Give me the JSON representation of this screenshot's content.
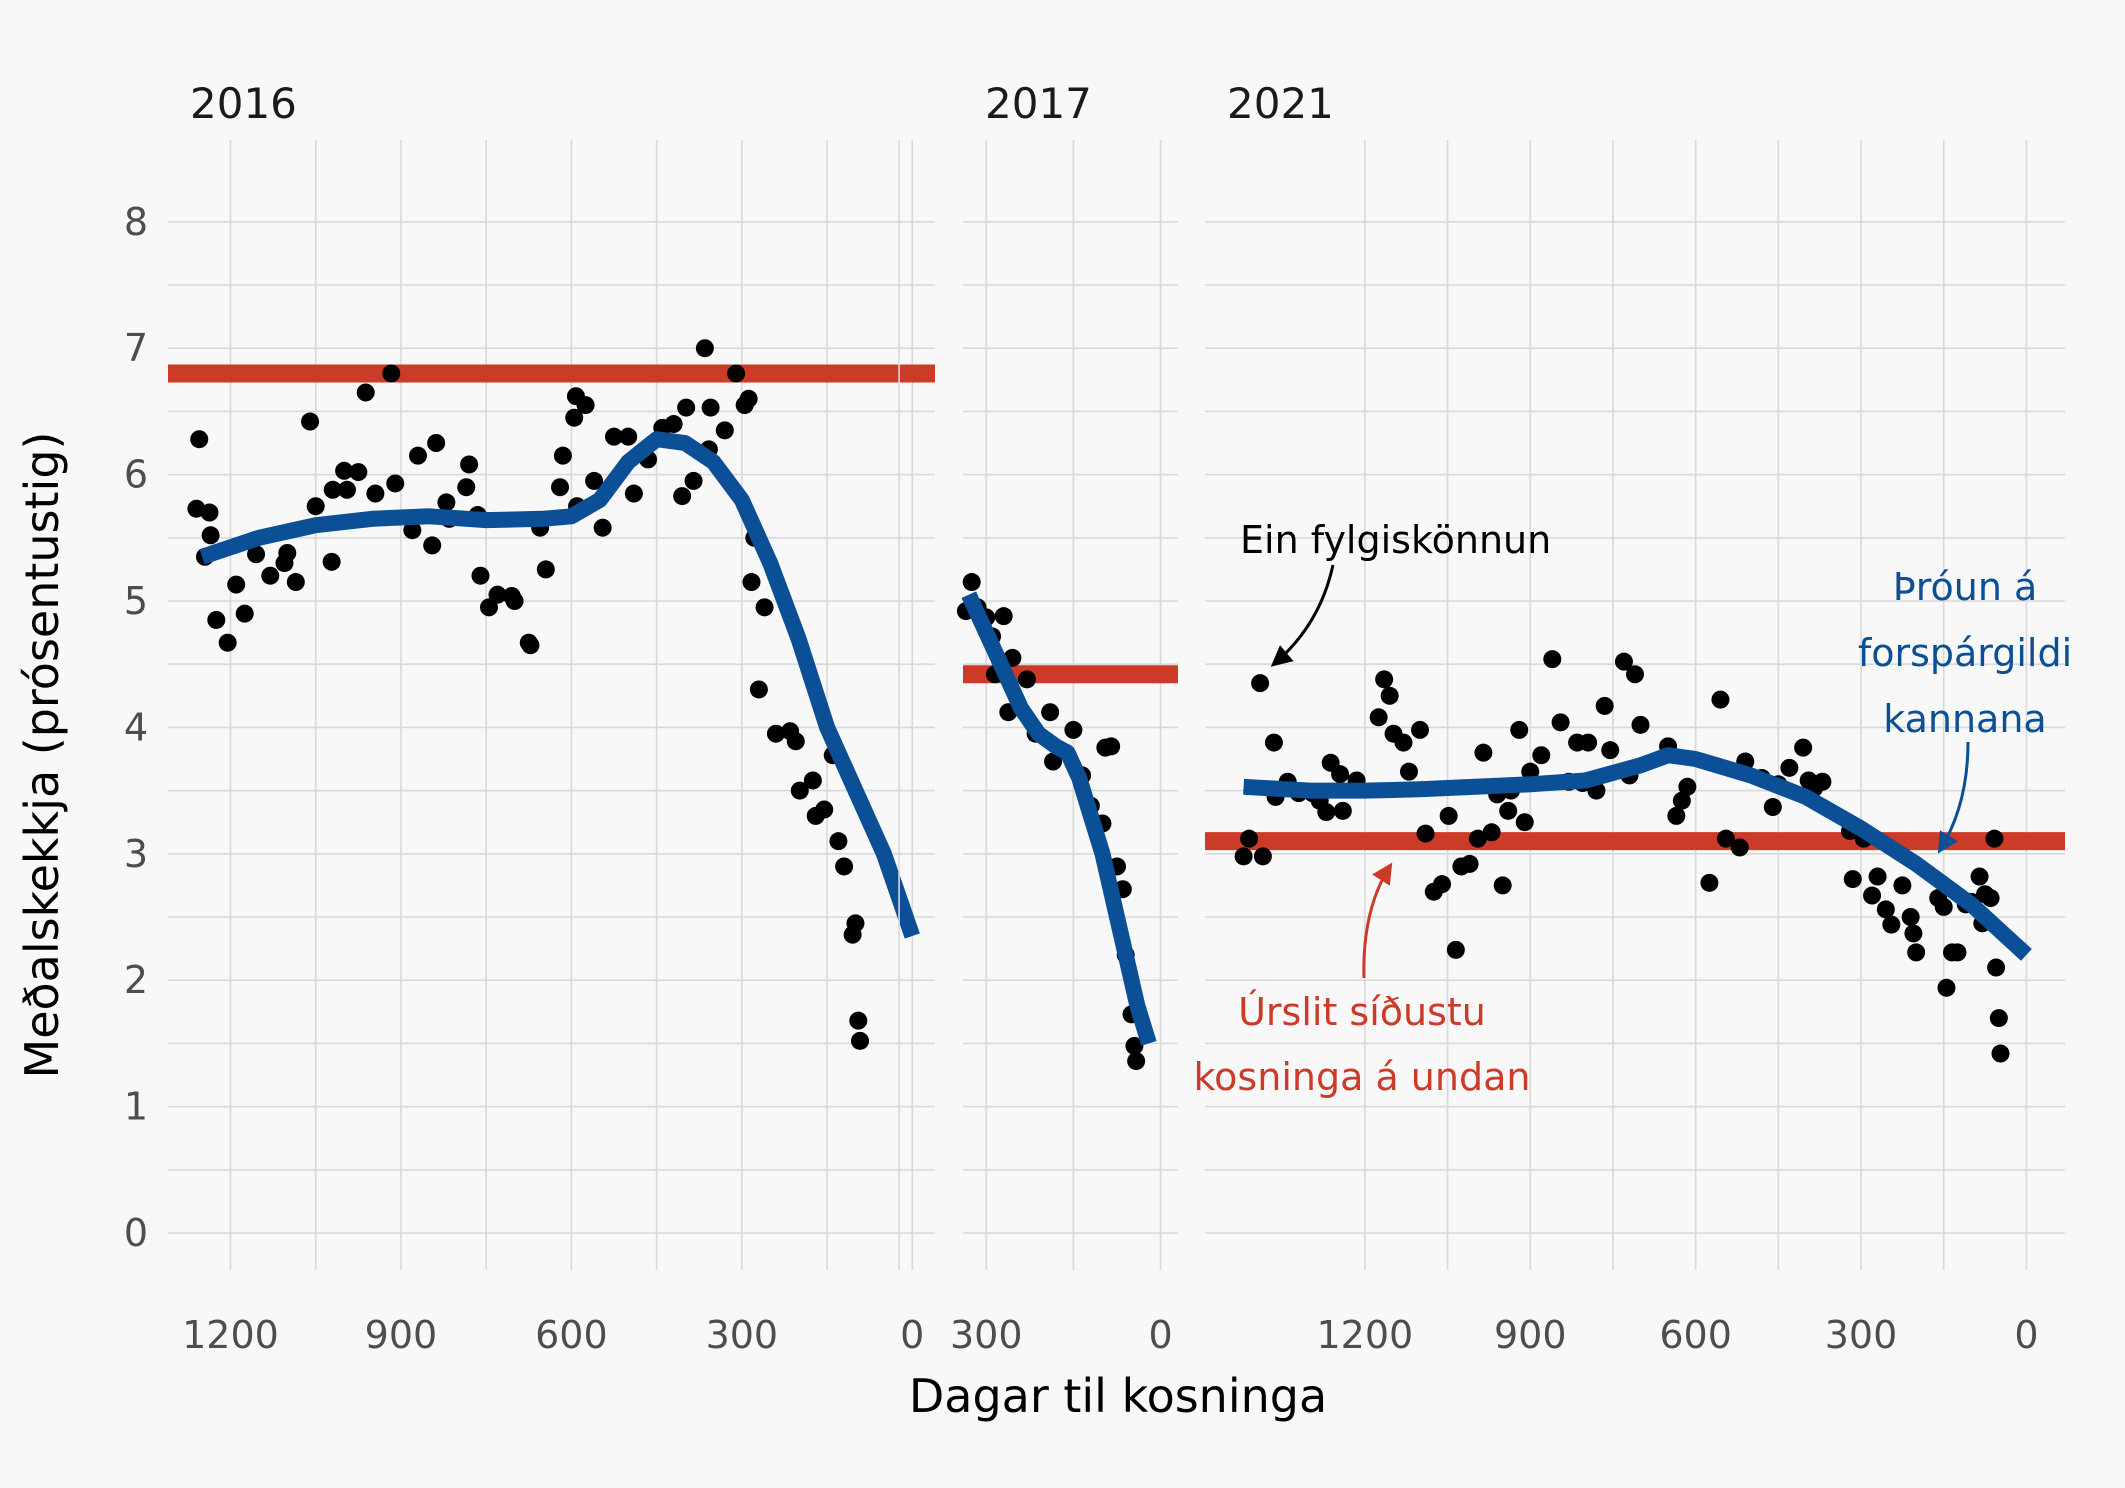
{
  "colors": {
    "background": "#f8f8f8",
    "points": "#000000",
    "trend": "#0b4f96",
    "result": "#cc3a28",
    "grid": "#d9d9d9"
  },
  "annotations": {
    "poll": "Ein fylgiskönnun",
    "trend": [
      "Þróun á",
      "forspárgildi",
      "kannana"
    ],
    "result": [
      "Úrslit síðustu",
      "kosninga á undan"
    ]
  },
  "chart_data": {
    "type": "scatter",
    "xlabel": "Dagar til kosninga",
    "ylabel": "Meðalskekkja (prósentustig)",
    "ylim": [
      0,
      8.5
    ],
    "yticks": [
      0,
      1,
      2,
      3,
      4,
      5,
      6,
      7,
      8
    ],
    "x_reversed": true,
    "panels": [
      {
        "label": "2016",
        "xlim": [
          1310,
          -40
        ],
        "xticks": [
          1200,
          900,
          600,
          300,
          0
        ],
        "previous_result": 6.8,
        "trend": [
          [
            1250,
            5.35
          ],
          [
            1150,
            5.5
          ],
          [
            1050,
            5.6
          ],
          [
            950,
            5.65
          ],
          [
            850,
            5.67
          ],
          [
            750,
            5.64
          ],
          [
            650,
            5.65
          ],
          [
            600,
            5.67
          ],
          [
            550,
            5.8
          ],
          [
            500,
            6.1
          ],
          [
            450,
            6.28
          ],
          [
            400,
            6.25
          ],
          [
            350,
            6.1
          ],
          [
            300,
            5.8
          ],
          [
            250,
            5.3
          ],
          [
            200,
            4.7
          ],
          [
            150,
            4.0
          ],
          [
            100,
            3.5
          ],
          [
            50,
            3.0
          ],
          [
            0,
            2.35
          ]
        ],
        "points": [
          [
            1260,
            5.73
          ],
          [
            1255,
            6.28
          ],
          [
            1245,
            5.35
          ],
          [
            1237,
            5.7
          ],
          [
            1235,
            5.52
          ],
          [
            1225,
            4.85
          ],
          [
            1205,
            4.67
          ],
          [
            1190,
            5.13
          ],
          [
            1175,
            4.9
          ],
          [
            1155,
            5.37
          ],
          [
            1130,
            5.2
          ],
          [
            1105,
            5.3
          ],
          [
            1100,
            5.38
          ],
          [
            1085,
            5.15
          ],
          [
            1060,
            6.42
          ],
          [
            1050,
            5.75
          ],
          [
            1022,
            5.31
          ],
          [
            1020,
            5.88
          ],
          [
            1000,
            6.03
          ],
          [
            995,
            5.88
          ],
          [
            975,
            6.02
          ],
          [
            962,
            6.65
          ],
          [
            945,
            5.85
          ],
          [
            917,
            6.8
          ],
          [
            910,
            5.93
          ],
          [
            880,
            5.56
          ],
          [
            870,
            6.15
          ],
          [
            845,
            5.44
          ],
          [
            838,
            6.25
          ],
          [
            820,
            5.78
          ],
          [
            815,
            5.65
          ],
          [
            785,
            5.9
          ],
          [
            780,
            6.08
          ],
          [
            765,
            5.68
          ],
          [
            760,
            5.2
          ],
          [
            745,
            4.95
          ],
          [
            730,
            5.05
          ],
          [
            705,
            5.04
          ],
          [
            700,
            5.0
          ],
          [
            675,
            4.67
          ],
          [
            672,
            4.65
          ],
          [
            655,
            5.58
          ],
          [
            645,
            5.25
          ],
          [
            620,
            5.9
          ],
          [
            615,
            6.15
          ],
          [
            595,
            6.45
          ],
          [
            592,
            6.62
          ],
          [
            590,
            5.75
          ],
          [
            575,
            6.55
          ],
          [
            560,
            5.95
          ],
          [
            545,
            5.58
          ],
          [
            525,
            6.3
          ],
          [
            500,
            6.3
          ],
          [
            490,
            5.85
          ],
          [
            465,
            6.12
          ],
          [
            440,
            6.37
          ],
          [
            420,
            6.4
          ],
          [
            405,
            5.83
          ],
          [
            398,
            6.53
          ],
          [
            385,
            5.95
          ],
          [
            365,
            7.0
          ],
          [
            358,
            6.2
          ],
          [
            355,
            6.53
          ],
          [
            330,
            6.35
          ],
          [
            310,
            6.8
          ],
          [
            295,
            6.55
          ],
          [
            288,
            6.6
          ],
          [
            283,
            5.15
          ],
          [
            278,
            5.5
          ],
          [
            270,
            4.3
          ],
          [
            260,
            4.95
          ],
          [
            240,
            3.95
          ],
          [
            215,
            3.97
          ],
          [
            205,
            3.89
          ],
          [
            198,
            3.5
          ],
          [
            175,
            3.58
          ],
          [
            170,
            3.3
          ],
          [
            155,
            3.35
          ],
          [
            140,
            3.78
          ],
          [
            130,
            3.1
          ],
          [
            120,
            2.9
          ],
          [
            105,
            2.36
          ],
          [
            100,
            2.45
          ],
          [
            95,
            1.68
          ],
          [
            92,
            1.52
          ]
        ]
      },
      {
        "label": "2017",
        "xlim": [
          340,
          -30
        ],
        "xticks": [
          300,
          0
        ],
        "previous_result": 4.42,
        "trend": [
          [
            330,
            5.05
          ],
          [
            300,
            4.75
          ],
          [
            270,
            4.45
          ],
          [
            240,
            4.15
          ],
          [
            210,
            3.95
          ],
          [
            180,
            3.85
          ],
          [
            160,
            3.8
          ],
          [
            140,
            3.6
          ],
          [
            120,
            3.3
          ],
          [
            100,
            3.0
          ],
          [
            80,
            2.6
          ],
          [
            60,
            2.2
          ],
          [
            40,
            1.8
          ],
          [
            20,
            1.5
          ]
        ],
        "points": [
          [
            335,
            4.92
          ],
          [
            325,
            5.15
          ],
          [
            315,
            4.95
          ],
          [
            300,
            4.87
          ],
          [
            290,
            4.72
          ],
          [
            285,
            4.42
          ],
          [
            270,
            4.88
          ],
          [
            262,
            4.12
          ],
          [
            255,
            4.55
          ],
          [
            230,
            4.38
          ],
          [
            215,
            3.95
          ],
          [
            190,
            4.12
          ],
          [
            185,
            3.73
          ],
          [
            150,
            3.98
          ],
          [
            135,
            3.62
          ],
          [
            120,
            3.38
          ],
          [
            100,
            3.24
          ],
          [
            95,
            3.84
          ],
          [
            85,
            3.85
          ],
          [
            75,
            2.9
          ],
          [
            65,
            2.72
          ],
          [
            60,
            2.2
          ],
          [
            50,
            1.73
          ],
          [
            45,
            1.48
          ],
          [
            42,
            1.36
          ]
        ]
      },
      {
        "label": "2021",
        "xlim": [
          1490,
          -70
        ],
        "xticks": [
          1200,
          900,
          600,
          300,
          0
        ],
        "previous_result": 3.1,
        "trend": [
          [
            1420,
            3.53
          ],
          [
            1300,
            3.5
          ],
          [
            1200,
            3.5
          ],
          [
            1100,
            3.51
          ],
          [
            1000,
            3.53
          ],
          [
            900,
            3.55
          ],
          [
            800,
            3.58
          ],
          [
            700,
            3.7
          ],
          [
            650,
            3.78
          ],
          [
            600,
            3.75
          ],
          [
            500,
            3.62
          ],
          [
            400,
            3.45
          ],
          [
            300,
            3.2
          ],
          [
            200,
            2.92
          ],
          [
            100,
            2.6
          ],
          [
            0,
            2.2
          ]
        ],
        "points": [
          [
            1420,
            2.98
          ],
          [
            1410,
            3.12
          ],
          [
            1390,
            4.35
          ],
          [
            1385,
            2.98
          ],
          [
            1365,
            3.88
          ],
          [
            1362,
            3.45
          ],
          [
            1340,
            3.57
          ],
          [
            1320,
            3.48
          ],
          [
            1295,
            3.48
          ],
          [
            1282,
            3.42
          ],
          [
            1270,
            3.33
          ],
          [
            1262,
            3.72
          ],
          [
            1245,
            3.63
          ],
          [
            1240,
            3.34
          ],
          [
            1215,
            3.58
          ],
          [
            1175,
            4.08
          ],
          [
            1165,
            4.38
          ],
          [
            1155,
            4.25
          ],
          [
            1148,
            3.95
          ],
          [
            1130,
            3.88
          ],
          [
            1120,
            3.65
          ],
          [
            1100,
            3.98
          ],
          [
            1090,
            3.16
          ],
          [
            1075,
            2.7
          ],
          [
            1060,
            2.76
          ],
          [
            1048,
            3.3
          ],
          [
            1035,
            2.24
          ],
          [
            1025,
            2.9
          ],
          [
            1010,
            2.92
          ],
          [
            995,
            3.12
          ],
          [
            985,
            3.8
          ],
          [
            970,
            3.17
          ],
          [
            960,
            3.47
          ],
          [
            950,
            2.75
          ],
          [
            940,
            3.34
          ],
          [
            935,
            3.5
          ],
          [
            920,
            3.98
          ],
          [
            910,
            3.25
          ],
          [
            900,
            3.65
          ],
          [
            880,
            3.78
          ],
          [
            860,
            4.54
          ],
          [
            845,
            4.04
          ],
          [
            830,
            3.57
          ],
          [
            815,
            3.88
          ],
          [
            805,
            3.56
          ],
          [
            795,
            3.88
          ],
          [
            780,
            3.5
          ],
          [
            765,
            4.17
          ],
          [
            755,
            3.82
          ],
          [
            730,
            4.52
          ],
          [
            720,
            3.62
          ],
          [
            710,
            4.42
          ],
          [
            700,
            4.02
          ],
          [
            650,
            3.85
          ],
          [
            635,
            3.3
          ],
          [
            625,
            3.42
          ],
          [
            615,
            3.53
          ],
          [
            575,
            2.77
          ],
          [
            555,
            4.22
          ],
          [
            545,
            3.12
          ],
          [
            520,
            3.05
          ],
          [
            510,
            3.73
          ],
          [
            480,
            3.6
          ],
          [
            460,
            3.37
          ],
          [
            450,
            3.55
          ],
          [
            430,
            3.68
          ],
          [
            405,
            3.84
          ],
          [
            395,
            3.58
          ],
          [
            385,
            3.52
          ],
          [
            370,
            3.57
          ],
          [
            320,
            3.18
          ],
          [
            315,
            2.8
          ],
          [
            295,
            3.12
          ],
          [
            280,
            2.67
          ],
          [
            270,
            2.82
          ],
          [
            255,
            2.56
          ],
          [
            245,
            2.44
          ],
          [
            225,
            2.75
          ],
          [
            210,
            2.5
          ],
          [
            205,
            2.37
          ],
          [
            200,
            2.22
          ],
          [
            160,
            2.65
          ],
          [
            150,
            2.58
          ],
          [
            145,
            1.94
          ],
          [
            135,
            2.22
          ],
          [
            125,
            2.22
          ],
          [
            110,
            2.6
          ],
          [
            100,
            2.62
          ],
          [
            85,
            2.82
          ],
          [
            80,
            2.45
          ],
          [
            75,
            2.68
          ],
          [
            65,
            2.65
          ],
          [
            58,
            3.12
          ],
          [
            55,
            2.1
          ],
          [
            50,
            1.7
          ],
          [
            47,
            1.42
          ]
        ]
      }
    ]
  }
}
